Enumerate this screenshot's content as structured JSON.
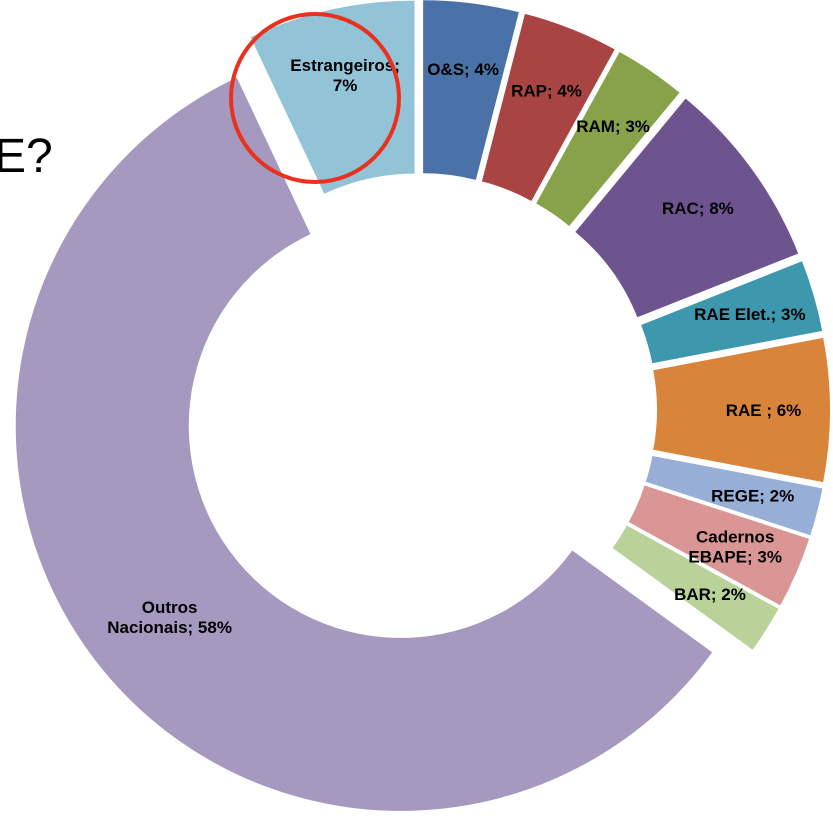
{
  "chart_data": {
    "type": "donut",
    "annotation": "E?",
    "value_labels": [
      "O&S; 4%",
      "RAP; 4%",
      "RAM; 3%",
      "RAC; 8%",
      "RAE Elet.; 3%",
      "RAE ; 6%",
      "REGE; 2%",
      "Cadernos\nEBAPE; 3%",
      "BAR; 2%",
      "Outros\nNacionais; 58%",
      "Estrangeiros;\n7%"
    ],
    "values": [
      4,
      4,
      3,
      8,
      3,
      6,
      2,
      3,
      2,
      58,
      7
    ],
    "colors": [
      "#4a72a8",
      "#a84442",
      "#87a24a",
      "#6e548f",
      "#3e98ad",
      "#d9843b",
      "#97aed6",
      "#d99695",
      "#b9d29a",
      "#a699c0",
      "#93c3d6"
    ]
  }
}
